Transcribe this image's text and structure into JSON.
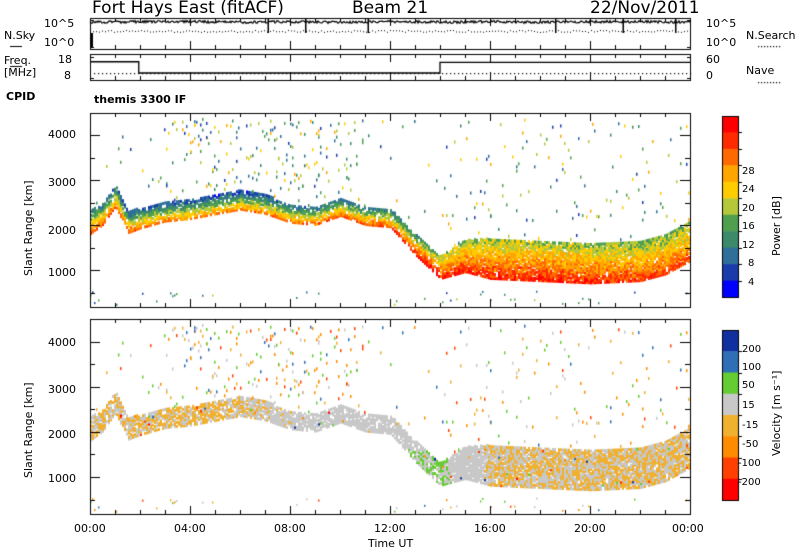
{
  "header": {
    "station": "Fort Hays East (fitACF)",
    "beam": "Beam 21",
    "date": "22/Nov/2011"
  },
  "top_panels": {
    "nsky_label": "N.Sky",
    "nsearch_label": "N.Search",
    "noise_ticks": [
      "10^5",
      "10^0"
    ],
    "freq_label_line1": "Freq.",
    "freq_label_line2": "[MHz]",
    "freq_ticks": [
      "18",
      "8"
    ],
    "nave_label": "Nave",
    "nave_ticks": [
      "60",
      "0"
    ],
    "cpid_label": "CPID",
    "cpid_value": "themis 3300 IF"
  },
  "x_axis": {
    "label": "Time UT",
    "ticks": [
      "00:00",
      "04:00",
      "08:00",
      "12:00",
      "16:00",
      "20:00",
      "00:00"
    ]
  },
  "power_panel": {
    "ylabel": "Slant Range [km]",
    "yticks": [
      "4000",
      "3000",
      "2000",
      "1000"
    ],
    "colorbar_label": "Power [dB]",
    "colorbar_ticks": [
      "28",
      "24",
      "20",
      "16",
      "12",
      "8",
      "4"
    ]
  },
  "velocity_panel": {
    "ylabel": "Slant Range [km]",
    "yticks": [
      "4000",
      "3000",
      "2000",
      "1000"
    ],
    "colorbar_label": "Velocity [m s⁻¹]",
    "colorbar_ticks": [
      "200",
      "100",
      "50",
      "15",
      "-15",
      "-50",
      "-100",
      "-200"
    ]
  },
  "chart_data": [
    {
      "type": "line",
      "name": "noise",
      "x_hours": [
        0,
        2,
        4,
        6,
        8,
        10,
        12,
        14,
        16,
        18,
        20,
        22,
        24
      ],
      "nsky_log10": [
        4.6,
        4.7,
        4.7,
        4.6,
        4.7,
        4.6,
        4.7,
        4.6,
        4.7,
        4.6,
        4.7,
        4.7,
        4.6
      ],
      "ylim": [
        0,
        5
      ]
    },
    {
      "type": "line",
      "name": "frequency",
      "x_hours": [
        0,
        1.95,
        1.95,
        14.0,
        14.0,
        24
      ],
      "freq_mhz": [
        15.5,
        15.5,
        10.6,
        10.6,
        15.2,
        15.2
      ],
      "nave": [
        11,
        11,
        11,
        11,
        11,
        11
      ],
      "ylim": [
        8,
        18
      ]
    },
    {
      "type": "heatmap",
      "name": "power",
      "xlim_hours": [
        0,
        24
      ],
      "ylim_km": [
        180,
        4500
      ],
      "zlim": [
        0,
        30
      ],
      "colorscale": [
        "#0000ff",
        "#1a3caa",
        "#2f6f9a",
        "#3b8a6a",
        "#4f9f4f",
        "#b5c83a",
        "#ffcc00",
        "#ffa500",
        "#ff6a00",
        "#ff2a00",
        "#ff0000"
      ],
      "band_center_km": [
        [
          0.0,
          2100
        ],
        [
          0.5,
          2300
        ],
        [
          1.0,
          2700
        ],
        [
          1.5,
          2100
        ],
        [
          2.0,
          2200
        ],
        [
          3.0,
          2350
        ],
        [
          4.0,
          2400
        ],
        [
          5.0,
          2500
        ],
        [
          6.0,
          2600
        ],
        [
          7.0,
          2500
        ],
        [
          8.0,
          2300
        ],
        [
          9.0,
          2250
        ],
        [
          10.0,
          2450
        ],
        [
          11.0,
          2250
        ],
        [
          12.0,
          2200
        ],
        [
          13.0,
          1600
        ],
        [
          14.0,
          1100
        ],
        [
          15.0,
          1350
        ],
        [
          16.0,
          1300
        ],
        [
          18.0,
          1250
        ],
        [
          20.0,
          1200
        ],
        [
          22.0,
          1250
        ],
        [
          23.0,
          1400
        ],
        [
          24.0,
          1700
        ]
      ],
      "band_width_km": [
        [
          0.0,
          500
        ],
        [
          2.0,
          450
        ],
        [
          8.0,
          400
        ],
        [
          12.0,
          400
        ],
        [
          14.0,
          500
        ],
        [
          16.0,
          900
        ],
        [
          24.0,
          900
        ]
      ],
      "band_power_db": [
        [
          0.0,
          22
        ],
        [
          4.0,
          18
        ],
        [
          8.0,
          20
        ],
        [
          12.0,
          22
        ],
        [
          14.0,
          28
        ],
        [
          18.0,
          28
        ],
        [
          24.0,
          26
        ]
      ]
    },
    {
      "type": "heatmap",
      "name": "velocity",
      "xlim_hours": [
        0,
        24
      ],
      "ylim_km": [
        180,
        4500
      ],
      "zlim": [
        -200,
        200
      ],
      "colorscale": [
        "#ff0000",
        "#ff4000",
        "#ff8c00",
        "#f0b030",
        "#c8c8c8",
        "#66cc33",
        "#2f6fb5",
        "#1030a0"
      ],
      "band_velocity_ms": [
        [
          0.0,
          0
        ],
        [
          4.0,
          -5
        ],
        [
          8.0,
          10
        ],
        [
          12.0,
          40
        ],
        [
          14.0,
          60
        ],
        [
          16.0,
          0
        ],
        [
          24.0,
          0
        ]
      ]
    }
  ]
}
